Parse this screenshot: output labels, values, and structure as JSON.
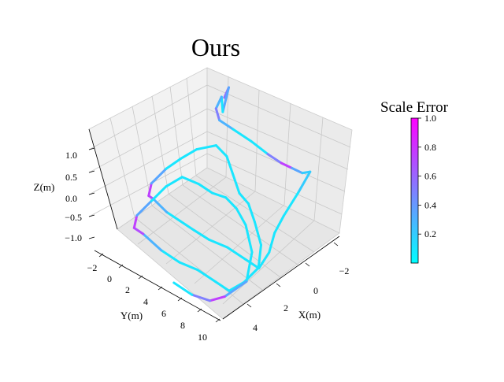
{
  "chart_data": {
    "type": "line-3d",
    "title": "Ours",
    "xlabel": "X(m)",
    "ylabel": "Y(m)",
    "zlabel": "Z(m)",
    "x_ticks": [
      "−2",
      "0",
      "2",
      "4"
    ],
    "y_ticks": [
      "−2",
      "0",
      "2",
      "4",
      "6",
      "8",
      "10"
    ],
    "z_ticks": [
      "1.0",
      "0.5",
      "0.0",
      "−0.5",
      "−1.0"
    ],
    "x_tick_values": [
      -2,
      0,
      2,
      4
    ],
    "y_tick_values": [
      -2,
      0,
      2,
      4,
      6,
      8,
      10
    ],
    "z_tick_values": [
      1.0,
      0.5,
      0.0,
      -0.5,
      -1.0
    ],
    "xlim": [
      -3,
      5
    ],
    "ylim": [
      -3,
      11
    ],
    "zlim": [
      -1.2,
      1.2
    ],
    "grid": true,
    "colorbar": {
      "title": "Scale Error",
      "ticks": [
        "1.0",
        "0.8",
        "0.6",
        "0.4",
        "0.2"
      ],
      "tick_values": [
        1.0,
        0.8,
        0.6,
        0.4,
        0.2
      ],
      "range": [
        0,
        1
      ],
      "colormap": "cool",
      "color_low": "#00ffff",
      "color_high": "#ff00ff"
    },
    "trajectory": [
      {
        "x": -3.0,
        "y": -2.5,
        "z": 0.6,
        "err": 0.5
      },
      {
        "x": -3.0,
        "y": -2.0,
        "z": 0.9,
        "err": 0.6
      },
      {
        "x": -2.9,
        "y": -2.5,
        "z": 0.3,
        "err": 0.1
      },
      {
        "x": -2.5,
        "y": -2.0,
        "z": 0.8,
        "err": 0.1
      },
      {
        "x": -1.5,
        "y": -1.0,
        "z": 0.9,
        "err": 0.5
      },
      {
        "x": -0.8,
        "y": 0.5,
        "z": 1.0,
        "err": 0.5
      },
      {
        "x": -0.8,
        "y": 2.0,
        "z": 1.0,
        "err": 0.1
      },
      {
        "x": -0.8,
        "y": 4.0,
        "z": 1.0,
        "err": 0.1
      },
      {
        "x": -0.7,
        "y": 6.0,
        "z": 1.0,
        "err": 0.1
      },
      {
        "x": -0.7,
        "y": 7.5,
        "z": 1.0,
        "err": 0.9
      },
      {
        "x": -0.8,
        "y": 8.5,
        "z": 1.0,
        "err": 0.6
      },
      {
        "x": -0.9,
        "y": 9.5,
        "z": 1.0,
        "err": 0.1
      },
      {
        "x": -1.0,
        "y": 10.2,
        "z": 1.1,
        "err": 0.3
      },
      {
        "x": 0.0,
        "y": 10.5,
        "z": 0.9,
        "err": 0.1
      },
      {
        "x": 1.0,
        "y": 10.5,
        "z": 0.6,
        "err": 0.1
      },
      {
        "x": 1.5,
        "y": 10.3,
        "z": 0.3,
        "err": 0.1
      },
      {
        "x": 2.0,
        "y": 10.5,
        "z": 0.0,
        "err": 0.1
      },
      {
        "x": 2.7,
        "y": 10.5,
        "z": -0.2,
        "err": 0.1
      },
      {
        "x": 2.7,
        "y": 9.0,
        "z": -0.2,
        "err": 0.1
      },
      {
        "x": 2.7,
        "y": 7.0,
        "z": -0.2,
        "err": 0.1
      },
      {
        "x": 2.7,
        "y": 5.0,
        "z": -0.3,
        "err": 0.1
      },
      {
        "x": 2.5,
        "y": 3.0,
        "z": -0.4,
        "err": 0.1
      },
      {
        "x": 2.5,
        "y": 1.5,
        "z": -0.4,
        "err": 0.1
      },
      {
        "x": 2.5,
        "y": 0.0,
        "z": -0.4,
        "err": 0.1
      },
      {
        "x": 2.5,
        "y": -1.5,
        "z": -0.3,
        "err": 0.5
      },
      {
        "x": 2.5,
        "y": -2.0,
        "z": -0.3,
        "err": 0.9
      },
      {
        "x": 2.0,
        "y": -2.5,
        "z": -0.2,
        "err": 0.6
      },
      {
        "x": 1.0,
        "y": -2.5,
        "z": -0.1,
        "err": 0.1
      },
      {
        "x": 0.0,
        "y": -2.5,
        "z": -0.1,
        "err": 0.1
      },
      {
        "x": -0.8,
        "y": -2.0,
        "z": 0.0,
        "err": 0.1
      },
      {
        "x": -1.2,
        "y": -0.5,
        "z": 0.2,
        "err": 0.1
      },
      {
        "x": -1.0,
        "y": 1.0,
        "z": 0.2,
        "err": 0.1
      },
      {
        "x": -0.5,
        "y": 2.5,
        "z": 0.1,
        "err": 0.1
      },
      {
        "x": 0.0,
        "y": 4.0,
        "z": 0.0,
        "err": 0.1
      },
      {
        "x": 0.0,
        "y": 5.0,
        "z": -0.1,
        "err": 0.1
      },
      {
        "x": 0.5,
        "y": 6.5,
        "z": -0.2,
        "err": 0.1
      },
      {
        "x": 1.0,
        "y": 8.0,
        "z": -0.4,
        "err": 0.1
      },
      {
        "x": 1.8,
        "y": 9.0,
        "z": -0.6,
        "err": 0.1
      },
      {
        "x": 2.8,
        "y": 9.0,
        "z": -0.7,
        "err": 0.1
      },
      {
        "x": 3.5,
        "y": 8.5,
        "z": -0.8,
        "err": 0.1
      },
      {
        "x": 3.5,
        "y": 7.0,
        "z": -0.8,
        "err": 0.1
      },
      {
        "x": 3.5,
        "y": 5.0,
        "z": -0.8,
        "err": 0.1
      },
      {
        "x": 3.5,
        "y": 3.0,
        "z": -0.9,
        "err": 0.1
      },
      {
        "x": 3.5,
        "y": 1.0,
        "z": -0.9,
        "err": 0.1
      },
      {
        "x": 3.5,
        "y": -1.0,
        "z": -0.8,
        "err": 0.5
      },
      {
        "x": 3.5,
        "y": -2.0,
        "z": -0.8,
        "err": 0.9
      },
      {
        "x": 3.0,
        "y": -2.5,
        "z": -0.7,
        "err": 0.6
      },
      {
        "x": 2.0,
        "y": -2.5,
        "z": -0.6,
        "err": 0.1
      },
      {
        "x": 1.0,
        "y": -2.5,
        "z": -0.5,
        "err": 0.1
      },
      {
        "x": 0.2,
        "y": -2.0,
        "z": -0.4,
        "err": 0.1
      },
      {
        "x": 0.0,
        "y": -0.5,
        "z": -0.4,
        "err": 0.1
      },
      {
        "x": 0.0,
        "y": 1.0,
        "z": -0.4,
        "err": 0.1
      },
      {
        "x": 0.0,
        "y": 2.5,
        "z": -0.3,
        "err": 0.1
      },
      {
        "x": 0.2,
        "y": 4.0,
        "z": -0.3,
        "err": 0.1
      },
      {
        "x": 0.5,
        "y": 5.5,
        "z": -0.4,
        "err": 0.1
      },
      {
        "x": 1.0,
        "y": 7.0,
        "z": -0.7,
        "err": 0.1
      },
      {
        "x": 2.0,
        "y": 8.0,
        "z": -1.0,
        "err": 0.1
      },
      {
        "x": 3.5,
        "y": 8.0,
        "z": -1.0,
        "err": 0.6
      },
      {
        "x": 4.2,
        "y": 7.5,
        "z": -1.0,
        "err": 0.9
      },
      {
        "x": 4.5,
        "y": 6.0,
        "z": -1.0,
        "err": 0.1
      },
      {
        "x": 4.5,
        "y": 4.0,
        "z": -1.0,
        "err": 0.1
      }
    ]
  }
}
